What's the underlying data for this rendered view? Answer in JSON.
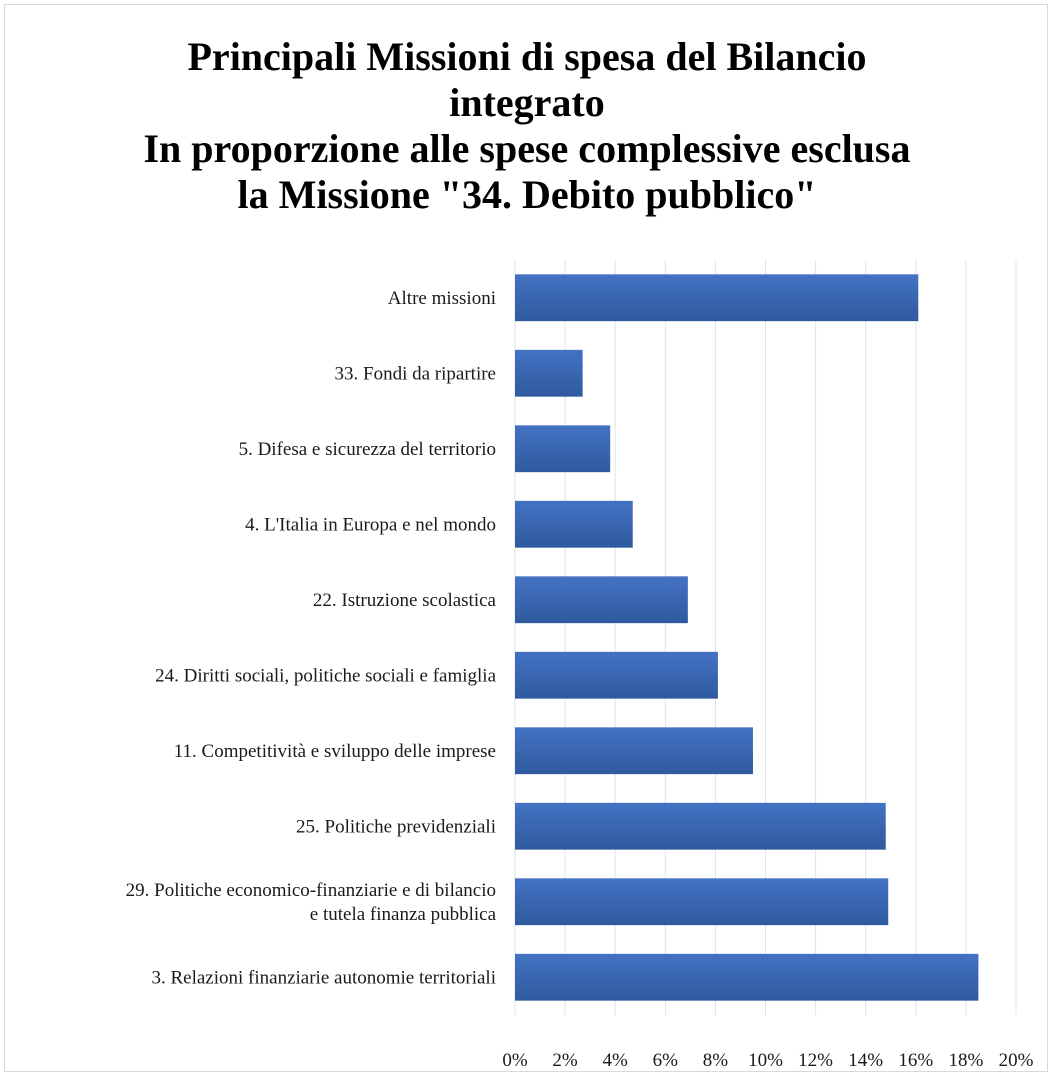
{
  "chart_data": {
    "type": "bar",
    "orientation": "horizontal",
    "title_lines": [
      "Principali Missioni di spesa del Bilancio",
      "integrato",
      "In proporzione alle spese complessive esclusa",
      "la Missione \"34. Debito pubblico\""
    ],
    "categories": [
      "Altre missioni",
      "33. Fondi da ripartire",
      "5. Difesa e sicurezza del territorio",
      "4. L'Italia in Europa e nel mondo",
      "22. Istruzione scolastica",
      "24. Diritti sociali, politiche sociali e famiglia",
      "11. Competitività e sviluppo delle imprese",
      "25. Politiche previdenziali",
      "29. Politiche economico-finanziarie e di bilancio\ne tutela finanza pubblica",
      "3. Relazioni finanziarie autonomie territoriali"
    ],
    "values": [
      16.1,
      2.7,
      3.8,
      4.7,
      6.9,
      8.1,
      9.5,
      14.8,
      14.9,
      18.5
    ],
    "xlim": [
      0,
      20
    ],
    "xticks": [
      "0%",
      "2%",
      "4%",
      "6%",
      "8%",
      "10%",
      "12%",
      "14%",
      "16%",
      "18%",
      "20%"
    ],
    "xtick_values": [
      0,
      2,
      4,
      6,
      8,
      10,
      12,
      14,
      16,
      18,
      20
    ],
    "grid": "vertical",
    "legend": "none",
    "bar_color": "#4472c4",
    "bar_color_dark": "#2f5a9e",
    "grid_color": "#dce3ee"
  }
}
